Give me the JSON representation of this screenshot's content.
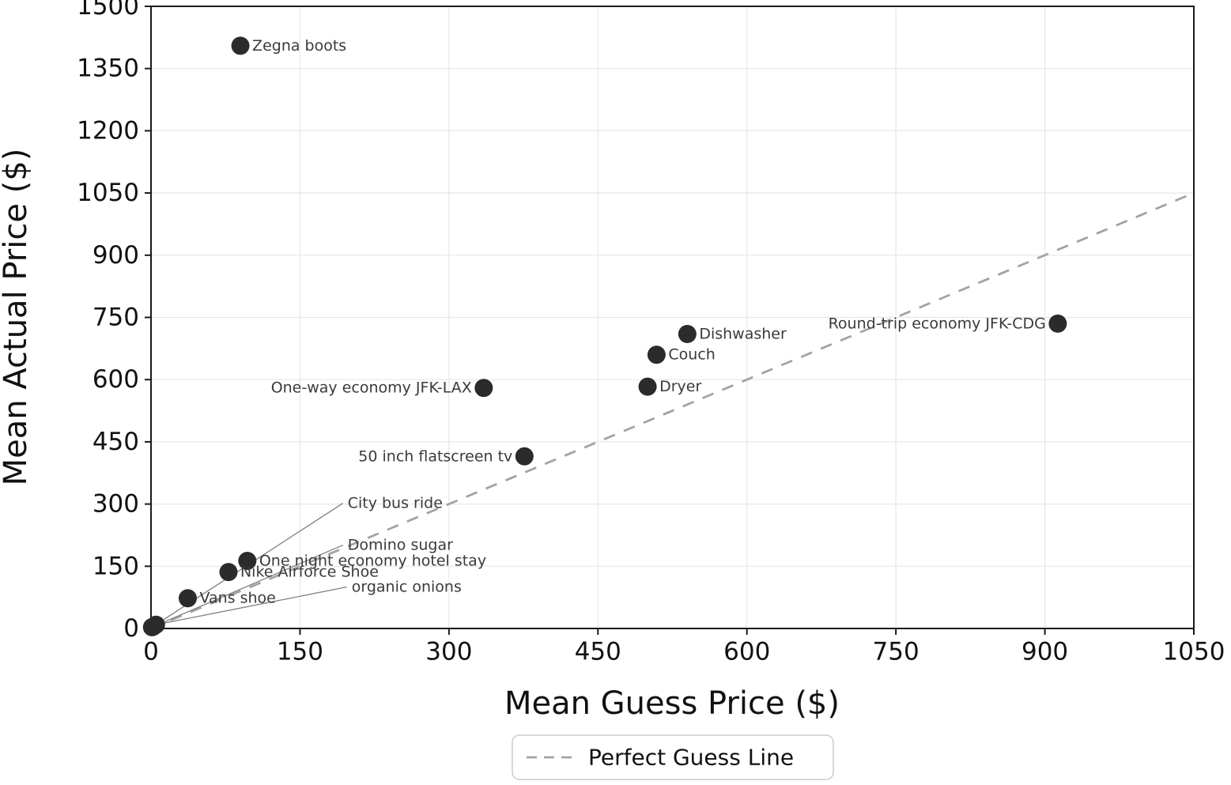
{
  "chart_data": {
    "type": "scatter",
    "title": "",
    "xlabel": "Mean Guess Price ($)",
    "ylabel": "Mean Actual Price ($)",
    "xlim": [
      0,
      1050
    ],
    "ylim": [
      0,
      1500
    ],
    "xticks": [
      0,
      150,
      300,
      450,
      600,
      750,
      900,
      1050
    ],
    "yticks": [
      0,
      150,
      300,
      450,
      600,
      750,
      900,
      1050,
      1200,
      1350,
      1500
    ],
    "grid": true,
    "colors": {
      "point": "#2b2b2b",
      "point_label": "#3a3a3a",
      "reference_line": "#a3a3a3",
      "gridline": "#e7e7e7",
      "axis": "#1a1a1a",
      "leader_line": "#808080"
    },
    "reference_line": {
      "label": "Perfect Guess Line",
      "from": [
        0,
        0
      ],
      "to": [
        1050,
        1050
      ],
      "style": "dashed"
    },
    "legend": {
      "position": "bottom-center",
      "entries": [
        {
          "label": "Perfect Guess Line",
          "style": "dashed"
        }
      ]
    },
    "points": [
      {
        "label": "Zegna boots",
        "x": 90,
        "y": 1405,
        "label_side": "right"
      },
      {
        "label": "Round-trip economy JFK-CDG",
        "x": 913,
        "y": 735,
        "label_side": "left"
      },
      {
        "label": "Dishwasher",
        "x": 540,
        "y": 710,
        "label_side": "right"
      },
      {
        "label": "Couch",
        "x": 509,
        "y": 660,
        "label_side": "right"
      },
      {
        "label": "Dryer",
        "x": 500,
        "y": 583,
        "label_side": "right"
      },
      {
        "label": "One-way economy JFK-LAX",
        "x": 335,
        "y": 580,
        "label_side": "left"
      },
      {
        "label": "50 inch flatscreen tv",
        "x": 376,
        "y": 415,
        "label_side": "left"
      },
      {
        "label": "One night economy hotel stay",
        "x": 97,
        "y": 163,
        "label_side": "right"
      },
      {
        "label": "Nike Airforce Shoe",
        "x": 78,
        "y": 136,
        "label_side": "right"
      },
      {
        "label": "Vans shoe",
        "x": 37,
        "y": 73,
        "label_side": "right"
      },
      {
        "label": "City bus ride",
        "x": 1,
        "y": 3,
        "label_side": "leader",
        "label_at": [
          198,
          302
        ]
      },
      {
        "label": "Domino sugar",
        "x": 2,
        "y": 4,
        "label_side": "leader",
        "label_at": [
          198,
          201
        ]
      },
      {
        "label": "organic onions",
        "x": 5,
        "y": 9,
        "label_side": "leader",
        "label_at": [
          202,
          100
        ]
      }
    ]
  }
}
